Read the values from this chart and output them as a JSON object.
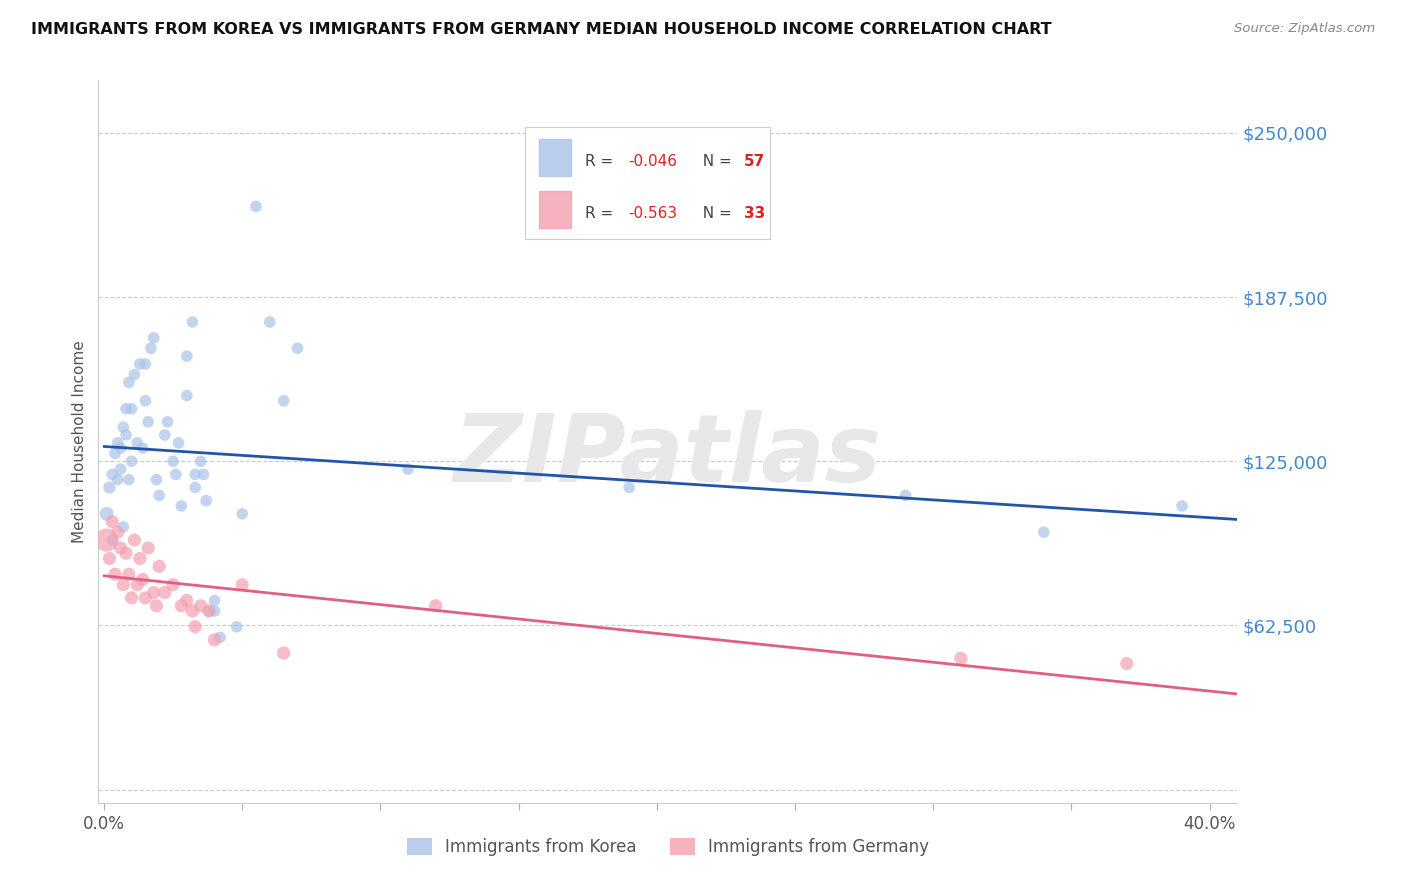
{
  "title": "IMMIGRANTS FROM KOREA VS IMMIGRANTS FROM GERMANY MEDIAN HOUSEHOLD INCOME CORRELATION CHART",
  "source": "Source: ZipAtlas.com",
  "ylabel": "Median Household Income",
  "yticks": [
    0,
    62500,
    125000,
    187500,
    250000
  ],
  "ylim": [
    -5000,
    270000
  ],
  "xlim": [
    -0.002,
    0.41
  ],
  "watermark": "ZIPatlas",
  "korea_color": "#aac4e8",
  "germany_color": "#f4a0b0",
  "korea_line_color": "#2255aa",
  "germany_line_color": "#e06080",
  "background_color": "#ffffff",
  "grid_color": "#cccccc",
  "korea_r": "-0.046",
  "korea_n": "57",
  "germany_r": "-0.563",
  "germany_n": "33",
  "korea_x": [
    0.001,
    0.002,
    0.003,
    0.003,
    0.004,
    0.005,
    0.005,
    0.006,
    0.006,
    0.007,
    0.007,
    0.008,
    0.008,
    0.009,
    0.009,
    0.01,
    0.01,
    0.011,
    0.012,
    0.013,
    0.014,
    0.015,
    0.015,
    0.016,
    0.017,
    0.018,
    0.019,
    0.02,
    0.022,
    0.023,
    0.025,
    0.026,
    0.027,
    0.028,
    0.03,
    0.03,
    0.032,
    0.033,
    0.033,
    0.035,
    0.036,
    0.037,
    0.038,
    0.04,
    0.04,
    0.042,
    0.05,
    0.055,
    0.06,
    0.065,
    0.07,
    0.11,
    0.19,
    0.29,
    0.34,
    0.39,
    0.048
  ],
  "korea_y": [
    105000,
    115000,
    95000,
    120000,
    128000,
    118000,
    132000,
    122000,
    130000,
    138000,
    100000,
    135000,
    145000,
    118000,
    155000,
    125000,
    145000,
    158000,
    132000,
    162000,
    130000,
    148000,
    162000,
    140000,
    168000,
    172000,
    118000,
    112000,
    135000,
    140000,
    125000,
    120000,
    132000,
    108000,
    150000,
    165000,
    178000,
    120000,
    115000,
    125000,
    120000,
    110000,
    68000,
    72000,
    68000,
    58000,
    105000,
    222000,
    178000,
    148000,
    168000,
    122000,
    115000,
    112000,
    98000,
    108000,
    62000
  ],
  "korea_sizes": [
    100,
    80,
    70,
    70,
    70,
    70,
    70,
    70,
    70,
    70,
    70,
    70,
    70,
    70,
    70,
    70,
    70,
    70,
    70,
    70,
    70,
    70,
    70,
    70,
    70,
    70,
    70,
    70,
    70,
    70,
    70,
    70,
    70,
    70,
    70,
    70,
    70,
    70,
    70,
    70,
    70,
    70,
    70,
    70,
    70,
    70,
    70,
    70,
    70,
    70,
    70,
    70,
    70,
    70,
    70,
    70,
    70
  ],
  "germany_x": [
    0.001,
    0.002,
    0.003,
    0.004,
    0.005,
    0.006,
    0.007,
    0.008,
    0.009,
    0.01,
    0.011,
    0.012,
    0.013,
    0.014,
    0.015,
    0.016,
    0.018,
    0.019,
    0.02,
    0.022,
    0.025,
    0.028,
    0.03,
    0.032,
    0.033,
    0.035,
    0.038,
    0.04,
    0.05,
    0.065,
    0.12,
    0.31,
    0.37
  ],
  "germany_y": [
    95000,
    88000,
    102000,
    82000,
    98000,
    92000,
    78000,
    90000,
    82000,
    73000,
    95000,
    78000,
    88000,
    80000,
    73000,
    92000,
    75000,
    70000,
    85000,
    75000,
    78000,
    70000,
    72000,
    68000,
    62000,
    70000,
    68000,
    57000,
    78000,
    52000,
    70000,
    50000,
    48000
  ],
  "germany_sizes": [
    280,
    90,
    90,
    90,
    90,
    90,
    90,
    90,
    90,
    90,
    90,
    90,
    90,
    90,
    90,
    90,
    90,
    90,
    90,
    90,
    90,
    90,
    90,
    90,
    90,
    90,
    90,
    90,
    90,
    90,
    90,
    90,
    90
  ]
}
